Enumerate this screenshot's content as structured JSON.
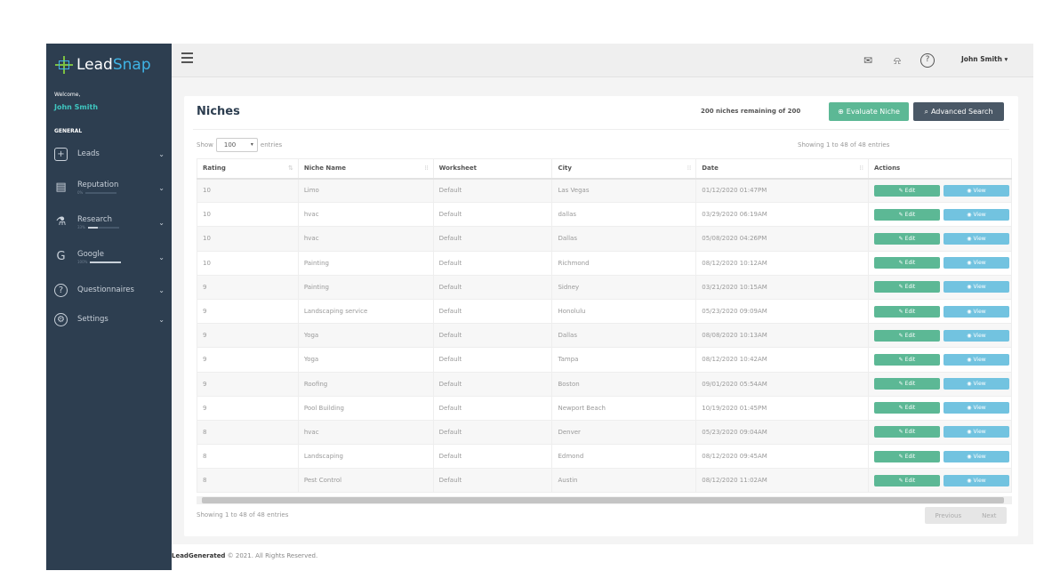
{
  "brand": {
    "part1": "Lead",
    "part2": "Snap"
  },
  "sidebar": {
    "welcome": "Welcome,",
    "user": "John Smith",
    "section": "GENERAL",
    "items": [
      {
        "label": "Leads",
        "icon": "plus-square-icon"
      },
      {
        "label": "Reputation",
        "icon": "chat-icon",
        "progress_label": "0%",
        "progress": 0
      },
      {
        "label": "Research",
        "icon": "flask-icon",
        "progress_label": "33%",
        "progress": 33
      },
      {
        "label": "Google",
        "icon": "google-icon",
        "progress_label": "100%",
        "progress": 100
      },
      {
        "label": "Questionnaires",
        "icon": "question-circle-icon"
      },
      {
        "label": "Settings",
        "icon": "gear-icon"
      }
    ]
  },
  "topbar": {
    "user": "John Smith ▾",
    "icons": [
      "mail-icon",
      "bell-icon",
      "help-icon"
    ]
  },
  "page": {
    "title": "Niches",
    "remaining": "200 niches remaining of 200",
    "evaluate": "Evaluate Niche",
    "advanced": "Advanced Search",
    "show": "Show",
    "entries": "entries",
    "page_size": "100",
    "showing": "Showing 1 to 48 of 48 entries",
    "prev": "Previous",
    "next": "Next"
  },
  "colors": {
    "sidebar": "#2d3e50",
    "accent": "#5cb895",
    "view": "#72c3e0",
    "dark": "#4a5866"
  },
  "table": {
    "columns": [
      "Rating",
      "Niche Name",
      "Worksheet",
      "City",
      "Date",
      "Actions"
    ],
    "edit": "Edit",
    "view": "View",
    "rows": [
      [
        "10",
        "Limo",
        "Default",
        "Las Vegas",
        "01/12/2020 01:47PM"
      ],
      [
        "10",
        "hvac",
        "Default",
        "dallas",
        "03/29/2020 06:19AM"
      ],
      [
        "10",
        "hvac",
        "Default",
        "Dallas",
        "05/08/2020 04:26PM"
      ],
      [
        "10",
        "Painting",
        "Default",
        "Richmond",
        "08/12/2020 10:12AM"
      ],
      [
        "9",
        "Painting",
        "Default",
        "Sidney",
        "03/21/2020 10:15AM"
      ],
      [
        "9",
        "Landscaping service",
        "Default",
        "Honolulu",
        "05/23/2020 09:09AM"
      ],
      [
        "9",
        "Yoga",
        "Default",
        "Dallas",
        "08/08/2020 10:13AM"
      ],
      [
        "9",
        "Yoga",
        "Default",
        "Tampa",
        "08/12/2020 10:42AM"
      ],
      [
        "9",
        "Roofing",
        "Default",
        "Boston",
        "09/01/2020 05:54AM"
      ],
      [
        "9",
        "Pool Building",
        "Default",
        "Newport Beach",
        "10/19/2020 01:45PM"
      ],
      [
        "8",
        "hvac",
        "Default",
        "Denver",
        "05/23/2020 09:04AM"
      ],
      [
        "8",
        "Landscaping",
        "Default",
        "Edmond",
        "08/12/2020 09:45AM"
      ],
      [
        "8",
        "Pest Control",
        "Default",
        "Austin",
        "08/12/2020 11:02AM"
      ]
    ]
  },
  "footer": {
    "brand": "LeadGenerated",
    "text": " © 2021. All Rights Reserved."
  }
}
